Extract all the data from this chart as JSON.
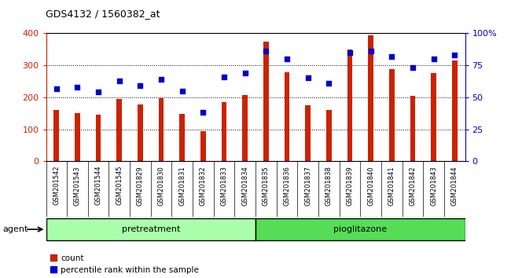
{
  "title": "GDS4132 / 1560382_at",
  "categories": [
    "GSM201542",
    "GSM201543",
    "GSM201544",
    "GSM201545",
    "GSM201829",
    "GSM201830",
    "GSM201831",
    "GSM201832",
    "GSM201833",
    "GSM201834",
    "GSM201835",
    "GSM201836",
    "GSM201837",
    "GSM201838",
    "GSM201839",
    "GSM201840",
    "GSM201841",
    "GSM201842",
    "GSM201843",
    "GSM201844"
  ],
  "bar_values": [
    160,
    150,
    145,
    195,
    178,
    197,
    148,
    93,
    185,
    207,
    373,
    278,
    175,
    160,
    350,
    393,
    288,
    205,
    275,
    315
  ],
  "dot_values": [
    57,
    58,
    54,
    63,
    59,
    64,
    55,
    38,
    66,
    69,
    86,
    80,
    65,
    61,
    85,
    86,
    82,
    73,
    80,
    83
  ],
  "left_ylim": [
    0,
    400
  ],
  "left_yticks": [
    0,
    100,
    200,
    300,
    400
  ],
  "right_ylim": [
    0,
    100
  ],
  "right_yticks": [
    0,
    25,
    50,
    75,
    100
  ],
  "bar_color": "#cc2200",
  "dot_color": "#0000cc",
  "bg_color": "#c8c8c8",
  "plot_bg": "#ffffff",
  "grid_color": "#000000",
  "pretreatment_color": "#aaffaa",
  "pioglitazone_color": "#55dd55",
  "pretreatment_label": "pretreatment",
  "pioglitazone_label": "pioglitazone",
  "pretreatment_range": [
    0,
    9
  ],
  "pioglitazone_range": [
    10,
    19
  ],
  "legend_count": "count",
  "legend_percentile": "percentile rank within the sample",
  "agent_label": "agent"
}
